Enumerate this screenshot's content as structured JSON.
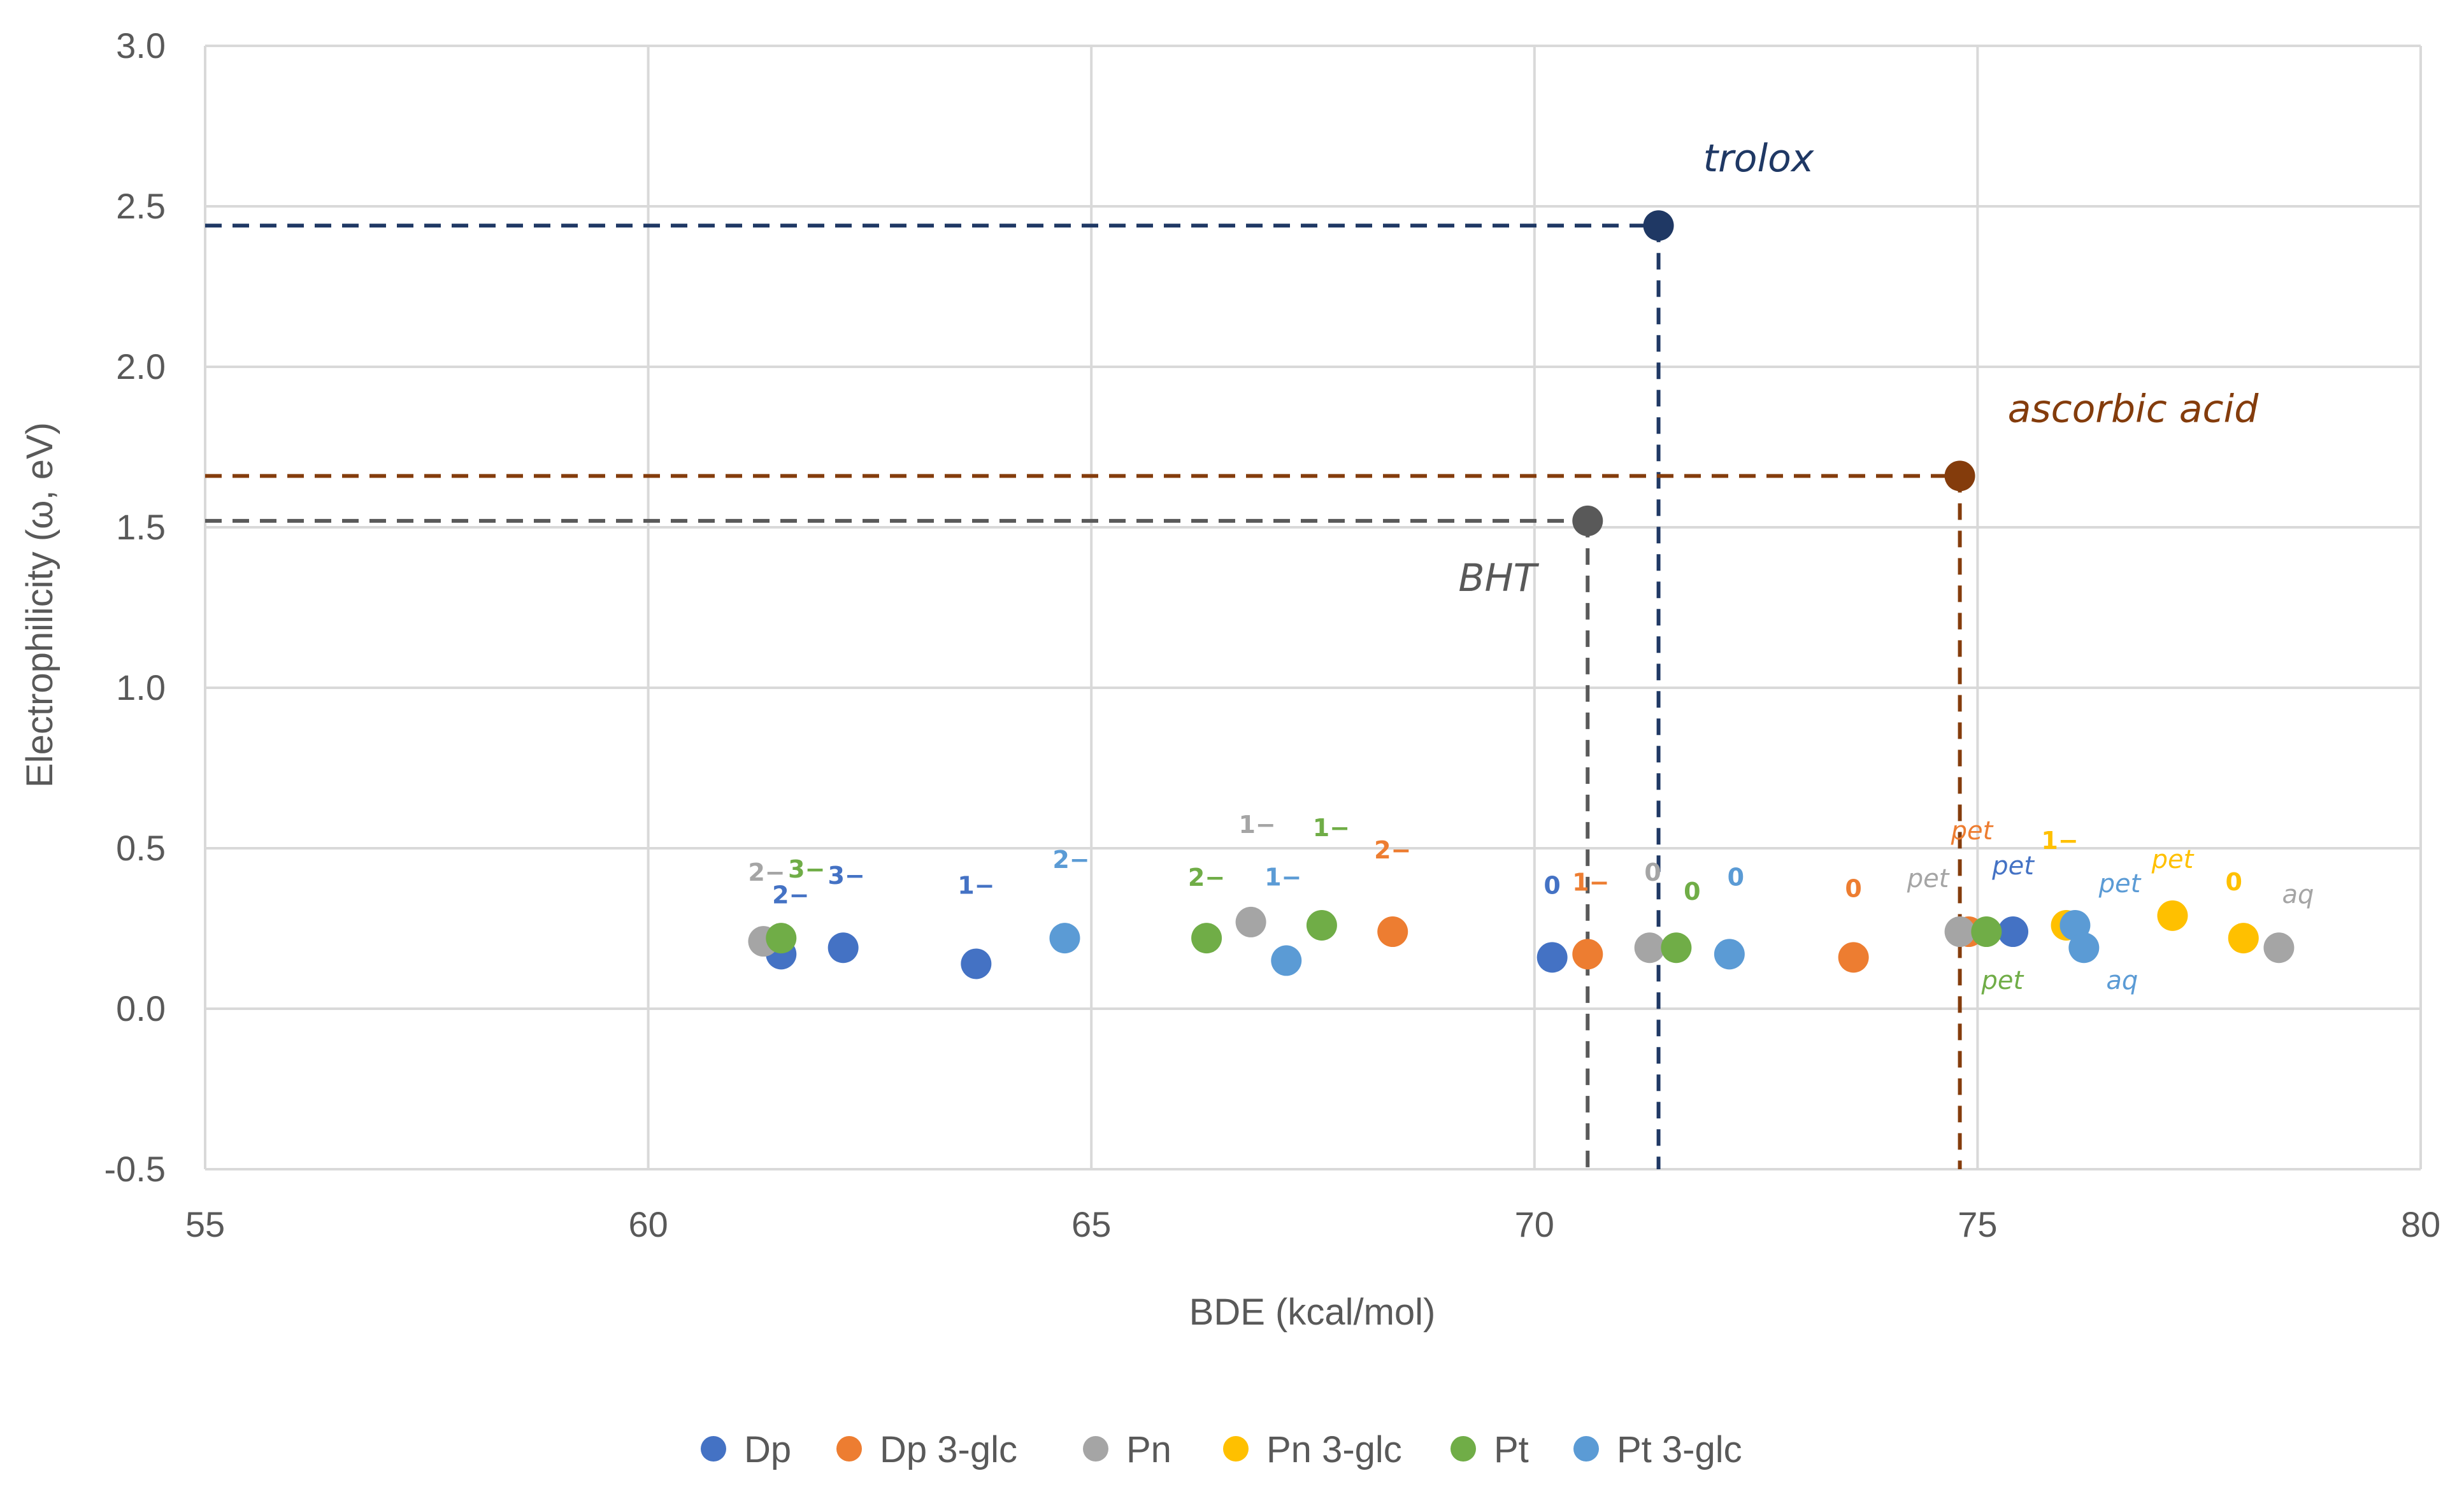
{
  "chart_data": {
    "type": "scatter",
    "title": "",
    "xlabel": "BDE (kcal/mol)",
    "ylabel": "Electrophilicity (ω, eV)",
    "xlim": [
      55,
      80
    ],
    "ylim": [
      -0.5,
      3.0
    ],
    "xticks": [
      55,
      60,
      65,
      70,
      75,
      80
    ],
    "yticks": [
      -0.5,
      0.0,
      0.5,
      1.0,
      1.5,
      2.0,
      2.5,
      3.0
    ],
    "xtick_labels": [
      "55",
      "60",
      "65",
      "70",
      "75",
      "80"
    ],
    "ytick_labels": [
      "-0.5",
      "0.0",
      "0.5",
      "1.0",
      "1.5",
      "2.0",
      "2.5",
      "3.0"
    ],
    "grid": true,
    "legend_position": "bottom",
    "series": [
      {
        "name": "Dp",
        "color": "#4472c4",
        "points": [
          {
            "x": 61.5,
            "y": 0.17,
            "label": "2−"
          },
          {
            "x": 62.2,
            "y": 0.19,
            "label": "3−"
          },
          {
            "x": 63.7,
            "y": 0.14,
            "label": "1−"
          },
          {
            "x": 70.2,
            "y": 0.16,
            "label": "0"
          },
          {
            "x": 75.4,
            "y": 0.24,
            "label": "pet"
          }
        ]
      },
      {
        "name": "Dp 3-glc",
        "color": "#ed7d31",
        "points": [
          {
            "x": 68.4,
            "y": 0.24,
            "label": "2−"
          },
          {
            "x": 70.6,
            "y": 0.17,
            "label": "1−"
          },
          {
            "x": 73.6,
            "y": 0.16,
            "label": "0"
          },
          {
            "x": 74.9,
            "y": 0.24,
            "label": "pet"
          }
        ]
      },
      {
        "name": "Pn",
        "color": "#a5a5a5",
        "points": [
          {
            "x": 61.3,
            "y": 0.21,
            "label": "2−"
          },
          {
            "x": 66.8,
            "y": 0.27,
            "label": "1−"
          },
          {
            "x": 71.3,
            "y": 0.19,
            "label": "0"
          },
          {
            "x": 74.8,
            "y": 0.24,
            "label": "pet"
          },
          {
            "x": 78.4,
            "y": 0.19,
            "label": "aq"
          }
        ]
      },
      {
        "name": "Pn 3-glc",
        "color": "#ffc000",
        "points": [
          {
            "x": 76.0,
            "y": 0.26,
            "label": "1−"
          },
          {
            "x": 77.2,
            "y": 0.29,
            "label": "pet"
          },
          {
            "x": 78.0,
            "y": 0.22,
            "label": "0"
          }
        ]
      },
      {
        "name": "Pt",
        "color": "#70ad47",
        "points": [
          {
            "x": 61.5,
            "y": 0.22,
            "label": "3−"
          },
          {
            "x": 66.3,
            "y": 0.22,
            "label": "2−"
          },
          {
            "x": 67.6,
            "y": 0.26,
            "label": "1−"
          },
          {
            "x": 71.6,
            "y": 0.19,
            "label": "0"
          },
          {
            "x": 75.1,
            "y": 0.24,
            "label": "pet"
          }
        ]
      },
      {
        "name": "Pt 3-glc",
        "color": "#5b9bd5",
        "points": [
          {
            "x": 64.7,
            "y": 0.22,
            "label": "2−"
          },
          {
            "x": 67.2,
            "y": 0.15,
            "label": "1−"
          },
          {
            "x": 72.2,
            "y": 0.17,
            "label": "0"
          },
          {
            "x": 76.1,
            "y": 0.26,
            "label": "pet"
          },
          {
            "x": 76.2,
            "y": 0.19,
            "label": "aq"
          }
        ]
      }
    ],
    "references": [
      {
        "name": "trolox",
        "x": 71.4,
        "y": 2.44,
        "color": "#1f3864"
      },
      {
        "name": "ascorbic acid",
        "x": 74.8,
        "y": 1.66,
        "color": "#843c0c"
      },
      {
        "name": "BHT",
        "x": 70.6,
        "y": 1.52,
        "color": "#595959"
      }
    ]
  }
}
